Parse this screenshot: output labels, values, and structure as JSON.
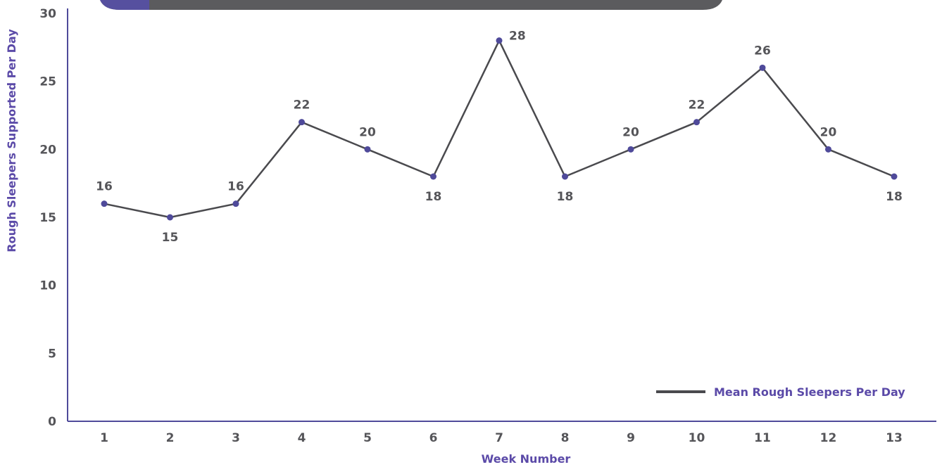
{
  "chart_data": {
    "type": "line",
    "title": "",
    "xlabel": "Week Number",
    "ylabel": "Rough Sleepers Supported Per Day",
    "categories": [
      "1",
      "2",
      "3",
      "4",
      "5",
      "6",
      "7",
      "8",
      "9",
      "10",
      "11",
      "12",
      "13"
    ],
    "series": [
      {
        "name": "Mean Rough Sleepers Per Day",
        "values": [
          16,
          15,
          16,
          22,
          20,
          18,
          28,
          18,
          20,
          22,
          26,
          20,
          18
        ],
        "data_labels": [
          "16",
          "15",
          "16",
          "22",
          "20",
          "18",
          "28",
          "18",
          "20",
          "22",
          "26",
          "20",
          "18"
        ]
      }
    ],
    "yticks": [
      "0",
      "5",
      "10",
      "15",
      "20",
      "25",
      "30"
    ],
    "ylim": [
      0,
      30
    ],
    "grid": false,
    "legend_position": "bottom-right",
    "colors": {
      "line": "#4a4a4e",
      "marker": "#4f4a9a",
      "axis": "#4f4a9a",
      "axis_title": "#5b4aa8",
      "tick_text": "#555559",
      "banner": "#5b5b5e",
      "banner_accent": "#56509f"
    }
  }
}
